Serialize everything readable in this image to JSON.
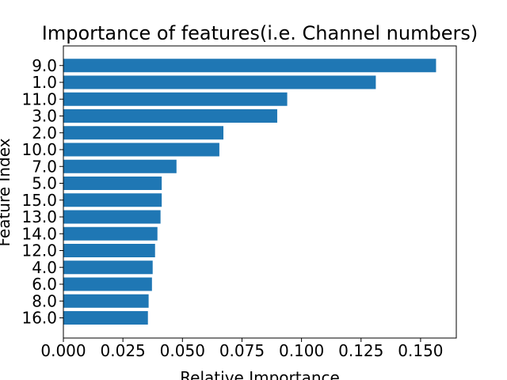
{
  "chart_data": {
    "type": "bar",
    "orientation": "horizontal",
    "title": "Importance of features(i.e. Channel numbers)",
    "xlabel": "Relative Importance",
    "ylabel": "Feature Index",
    "categories": [
      "16.0",
      "8.0",
      "6.0",
      "4.0",
      "12.0",
      "14.0",
      "13.0",
      "15.0",
      "5.0",
      "7.0",
      "10.0",
      "2.0",
      "3.0",
      "11.0",
      "1.0",
      "9.0"
    ],
    "values": [
      0.0355,
      0.0358,
      0.0372,
      0.0375,
      0.0385,
      0.0395,
      0.0408,
      0.0413,
      0.0413,
      0.0475,
      0.0655,
      0.0672,
      0.0898,
      0.094,
      0.1312,
      0.1565
    ],
    "xlim": [
      0,
      0.165
    ],
    "xticks": [
      "0.000",
      "0.025",
      "0.050",
      "0.075",
      "0.100",
      "0.125",
      "0.150"
    ],
    "bar_color": "#1f77b4",
    "grid": false
  }
}
